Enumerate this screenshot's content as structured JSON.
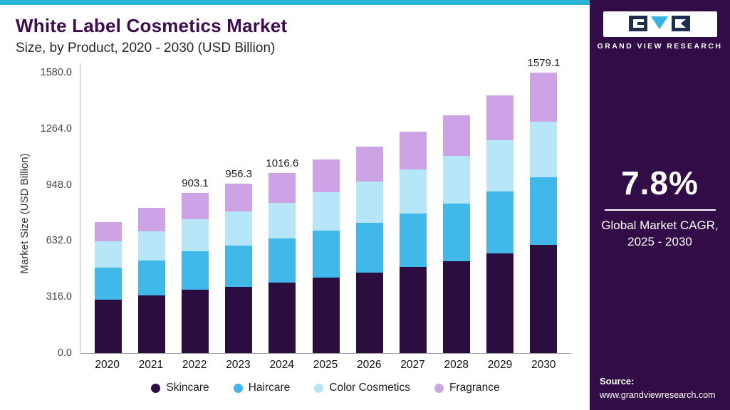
{
  "header": {
    "title": "White Label Cosmetics Market",
    "subtitle": "Size, by Product, 2020 - 2030 (USD Billion)"
  },
  "chart_data": {
    "type": "bar",
    "stacked": true,
    "title": "White Label Cosmetics Market Size, by Product, 2020 - 2030 (USD Billion)",
    "ylabel": "Market Size (USD Billion)",
    "ylim": [
      0,
      1580
    ],
    "yticks": [
      0,
      316,
      632,
      948,
      1264,
      1580
    ],
    "categories": [
      "2020",
      "2021",
      "2022",
      "2023",
      "2024",
      "2025",
      "2026",
      "2027",
      "2028",
      "2029",
      "2030"
    ],
    "series": [
      {
        "name": "Skincare",
        "color": "#2b0d3f",
        "values": [
          300,
          325,
          355,
          375,
          398,
          425,
          453,
          484,
          518,
          560,
          608
        ]
      },
      {
        "name": "Haircare",
        "color": "#41b8ea",
        "values": [
          180,
          196,
          218,
          231,
          246,
          264,
          282,
          302,
          324,
          350,
          381
        ]
      },
      {
        "name": "Color Cosmetics",
        "color": "#b8e6f9",
        "values": [
          150,
          164,
          180,
          191,
          203,
          218,
          233,
          250,
          268,
          290,
          316
        ]
      },
      {
        "name": "Fragrance",
        "color": "#cda3e6",
        "values": [
          110,
          133,
          150.1,
          159.3,
          169.6,
          183,
          197,
          212,
          230,
          250,
          274.1
        ]
      }
    ],
    "totals": [
      740,
      818,
      903.1,
      956.3,
      1016.6,
      1090,
      1165,
      1248,
      1340,
      1450,
      1579.1
    ],
    "bar_labels": [
      "",
      "",
      "903.1",
      "956.3",
      "1016.6",
      "",
      "",
      "",
      "",
      "",
      "1579.1"
    ],
    "legend_position": "bottom",
    "grid": false
  },
  "sidebar": {
    "logo_text": "GRAND VIEW RESEARCH",
    "stat_value": "7.8%",
    "stat_label_line1": "Global Market CAGR,",
    "stat_label_line2": "2025 - 2030",
    "source_label": "Source:",
    "source_url": "www.grandviewresearch.com"
  },
  "colors": {
    "top_strip": "#2ab5d6",
    "sidebar_bg": "#310c47",
    "title": "#3e0b50",
    "logo_navy": "#1e2d50",
    "logo_cyan": "#35b3e2"
  }
}
